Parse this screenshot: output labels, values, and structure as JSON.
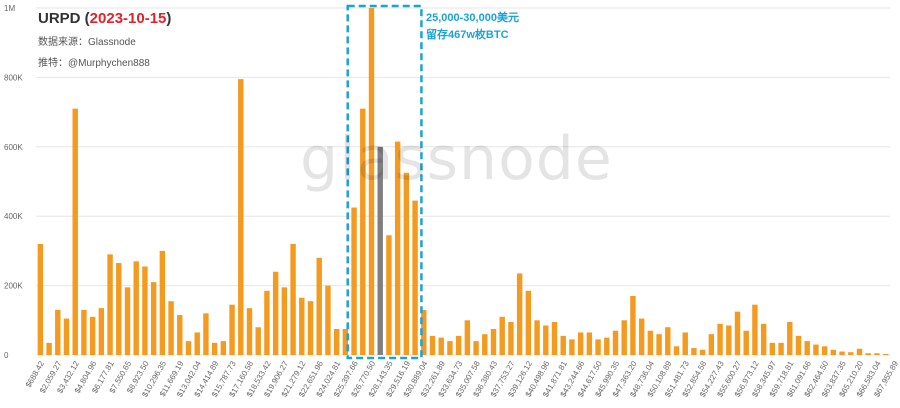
{
  "title": {
    "prefix": "URPD (",
    "date": "2023-10-15",
    "suffix": ")"
  },
  "source_line": "数据来源：Glassnode",
  "author_line": "推特：@Murphychen888",
  "annotation": {
    "line1": "25,000-30,000美元",
    "line2": "留存467w枚BTC"
  },
  "watermark": "glassnode",
  "colors": {
    "bar": "#f39a1f",
    "highlight_bar": "#7f7f7f",
    "highlight_box": "#1aa3d9",
    "axis_text": "#666666"
  },
  "chart_data": {
    "type": "bar",
    "ylim": [
      0,
      1000000
    ],
    "y_ticks": [
      0,
      200000,
      400000,
      600000,
      800000,
      1000000
    ],
    "y_tick_labels": [
      "0",
      "200K",
      "400K",
      "600K",
      "800K",
      "1M"
    ],
    "x_labels": [
      "$688.42",
      "$2,059.27",
      "$3,432.12",
      "$4,804.96",
      "$6,177.81",
      "$7,550.65",
      "$8,923.50",
      "$10,296.35",
      "$11,669.19",
      "$13,042.04",
      "$14,414.89",
      "$15,787.73",
      "$17,160.58",
      "$18,533.42",
      "$19,906.27",
      "$21,279.12",
      "$22,651.96",
      "$24,024.81",
      "$25,397.66",
      "$26,770.50",
      "$28,143.35",
      "$29,516.19",
      "$30,889.04",
      "$32,261.89",
      "$33,634.73",
      "$35,007.58",
      "$36,380.43",
      "$37,753.27",
      "$39,126.12",
      "$40,498.96",
      "$41,871.81",
      "$43,244.66",
      "$44,617.50",
      "$45,990.35",
      "$47,363.20",
      "$48,736.04",
      "$50,108.89",
      "$51,481.73",
      "$52,854.58",
      "$54,227.43",
      "$55,600.27",
      "$56,973.12",
      "$58,345.97",
      "$59,718.81",
      "$61,091.66",
      "$62,464.50",
      "$63,837.35",
      "$65,210.20",
      "$66,583.04",
      "$67,955.89"
    ],
    "values": [
      320000,
      35000,
      130000,
      105000,
      710000,
      130000,
      110000,
      135000,
      290000,
      265000,
      195000,
      270000,
      255000,
      210000,
      300000,
      155000,
      115000,
      40000,
      65000,
      120000,
      35000,
      40000,
      145000,
      795000,
      135000,
      80000,
      185000,
      240000,
      195000,
      320000,
      165000,
      155000,
      280000,
      200000,
      75000,
      75000,
      425000,
      710000,
      1000000,
      600000,
      345000,
      615000,
      525000,
      445000,
      130000,
      55000,
      50000,
      40000,
      55000,
      100000,
      40000,
      60000,
      75000,
      110000,
      95000,
      235000,
      185000,
      100000,
      85000,
      95000,
      55000,
      45000,
      65000,
      65000,
      45000,
      50000,
      70000,
      100000,
      170000,
      105000,
      70000,
      60000,
      80000,
      25000,
      65000,
      20000,
      15000,
      60000,
      90000,
      85000,
      125000,
      70000,
      145000,
      90000,
      35000,
      35000,
      95000,
      55000,
      40000,
      30000,
      25000,
      15000,
      10000,
      8000,
      18000,
      5000,
      5000,
      3000
    ],
    "highlight_index": 39,
    "highlight_range": {
      "start_index": 36,
      "end_index": 43
    }
  }
}
